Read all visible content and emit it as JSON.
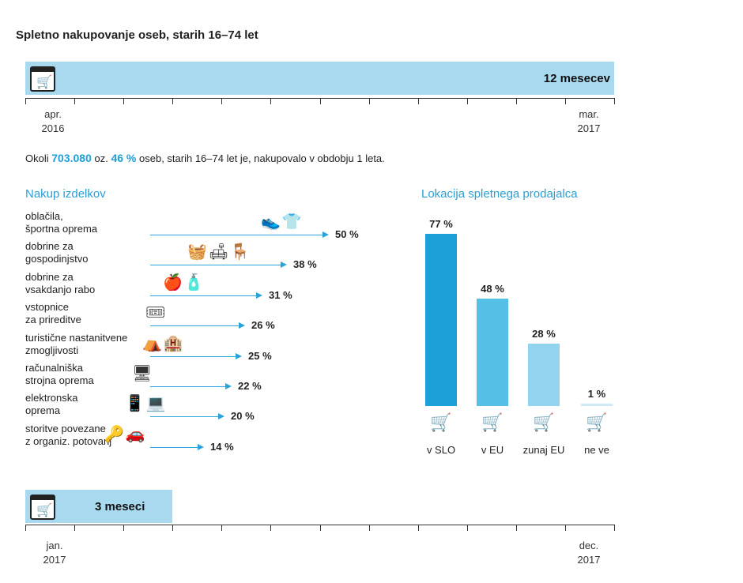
{
  "title": "Spletno nakupovanje oseb, starih 16–74 let",
  "colors": {
    "band": "#a8d9ee",
    "accent": "#1d9fd8",
    "bar_slo": "#1d9fd8",
    "bar_eu": "#56bfe6",
    "bar_nonEU": "#92d3ef",
    "bar_unknown": "#cfeaf6"
  },
  "period12": {
    "label": "12 mesecev",
    "start_month": "apr.",
    "start_year": "2016",
    "end_month": "mar.",
    "end_year": "2017"
  },
  "summary": {
    "prefix": "Okoli",
    "count": "703.080",
    "mid": "oz.",
    "percent": "46 %",
    "suffix": "oseb, starih 16–74 let je, nakupovalo v obdobju 1 leta."
  },
  "purchases_title": "Nakup izdelkov",
  "location_title": "Lokacija spletnega prodajalca",
  "period3": {
    "label": "3 meseci",
    "start_month": "jan.",
    "start_year": "2017",
    "end_month": "dec.",
    "end_year": "2017"
  },
  "chart_data": [
    {
      "type": "bar",
      "orientation": "horizontal",
      "title": "Nakup izdelkov",
      "unit": "%",
      "categories": [
        [
          "oblačila,",
          "športna oprema"
        ],
        [
          "dobrine za",
          "gospodinjstvo"
        ],
        [
          "dobrine za",
          "vsakdanjo rabo"
        ],
        [
          "vstopnice",
          "za prireditve"
        ],
        [
          "turistične nastanitvene",
          "zmogljivosti"
        ],
        [
          "računalniška",
          "strojna oprema"
        ],
        [
          "elektronska",
          "oprema"
        ],
        [
          "storitve povezane",
          "z organiz. potovanj"
        ]
      ],
      "values": [
        50,
        38,
        31,
        26,
        25,
        22,
        20,
        14
      ],
      "value_labels": [
        "50 %",
        "38 %",
        "31 %",
        "26 %",
        "25 %",
        "22 %",
        "20 %",
        "14 %"
      ],
      "icons": [
        "shoe-shirt-icon",
        "household-appliances-icon",
        "apple-bottle-icon",
        "tickets-icon",
        "tent-building-icon",
        "computer-icon",
        "devices-icon",
        "car-key-icon"
      ]
    },
    {
      "type": "bar",
      "orientation": "vertical",
      "title": "Lokacija spletnega prodajalca",
      "unit": "%",
      "categories": [
        "v SLO",
        "v EU",
        "zunaj EU",
        "ne ve"
      ],
      "values": [
        77,
        48,
        28,
        1
      ],
      "value_labels": [
        "77 %",
        "48 %",
        "28 %",
        "1 %"
      ],
      "ylim": [
        0,
        77
      ]
    }
  ]
}
